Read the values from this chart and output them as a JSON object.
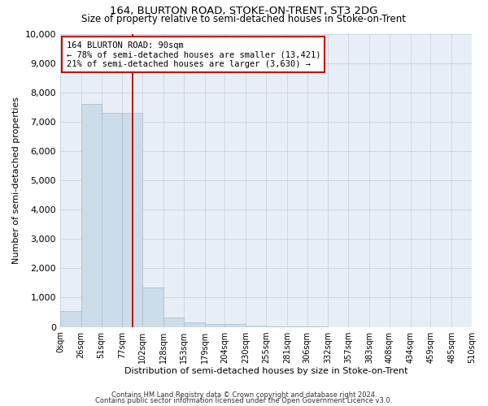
{
  "title": "164, BLURTON ROAD, STOKE-ON-TRENT, ST3 2DG",
  "subtitle": "Size of property relative to semi-detached houses in Stoke-on-Trent",
  "xlabel": "Distribution of semi-detached houses by size in Stoke-on-Trent",
  "ylabel": "Number of semi-detached properties",
  "footer_line1": "Contains HM Land Registry data © Crown copyright and database right 2024.",
  "footer_line2": "Contains public sector information licensed under the Open Government Licence v3.0.",
  "bin_edges": [
    0,
    26,
    51,
    77,
    102,
    128,
    153,
    179,
    204,
    230,
    255,
    281,
    306,
    332,
    357,
    383,
    408,
    434,
    459,
    485,
    510
  ],
  "bar_heights": [
    550,
    7600,
    7300,
    7300,
    1350,
    330,
    160,
    110,
    90,
    40,
    15,
    5,
    3,
    2,
    1,
    1,
    0,
    0,
    0,
    0
  ],
  "bar_color": "#ccdce8",
  "bar_edge_color": "#a8bece",
  "red_line_x": 90,
  "annotation_line1": "164 BLURTON ROAD: 90sqm",
  "annotation_line2": "← 78% of semi-detached houses are smaller (13,421)",
  "annotation_line3": "21% of semi-detached houses are larger (3,630) →",
  "ann_box_fc": "#ffffff",
  "ann_box_ec": "#cc0000",
  "ylim": [
    0,
    10000
  ],
  "yticks": [
    0,
    1000,
    2000,
    3000,
    4000,
    5000,
    6000,
    7000,
    8000,
    9000,
    10000
  ],
  "bg_color": "#ffffff",
  "plot_bg": "#e8eef5",
  "grid_color": "#c8d4e0",
  "title_fontsize": 9.5,
  "subtitle_fontsize": 8.5,
  "ann_fontsize": 7.5,
  "tick_fontsize": 7,
  "axis_label_fontsize": 8,
  "ylabel_fontsize": 8,
  "footer_fontsize": 6
}
